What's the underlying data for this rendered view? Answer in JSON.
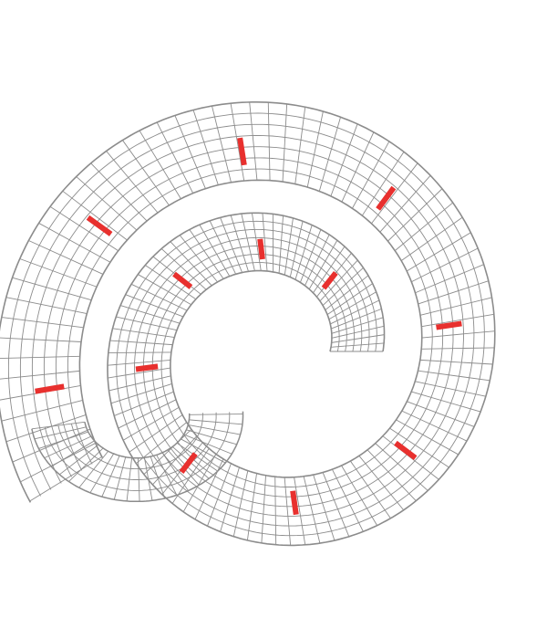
{
  "image": {
    "background": "#ffffff",
    "mesh_color": "#8c8c8c",
    "marker_color": "#e8302e",
    "marker_count": 12
  }
}
